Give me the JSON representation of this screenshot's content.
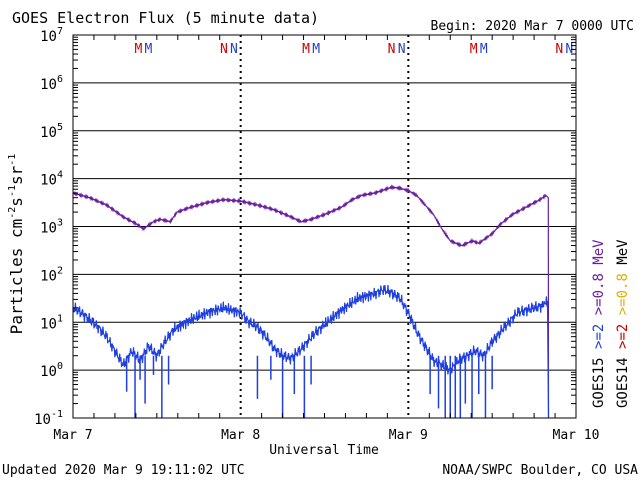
{
  "chart_data": {
    "type": "line",
    "title": "GOES Electron Flux (5 minute data)",
    "begin_label": "Begin: 2020 Mar 7 0000 UTC",
    "xlabel": "Universal Time",
    "ylabel_main": "Particles cm",
    "ylabel_exp1": "-2",
    "ylabel_mid1": "s",
    "ylabel_exp2": "-1",
    "ylabel_mid2": "sr",
    "ylabel_exp3": "-1",
    "x_ticks": [
      {
        "day": 0,
        "label": "Mar 7"
      },
      {
        "day": 1,
        "label": "Mar 8"
      },
      {
        "day": 2,
        "label": "Mar 9"
      },
      {
        "day": 3,
        "label": "Mar 10"
      }
    ],
    "xlim_days": [
      0,
      3
    ],
    "ylim_log10": [
      -1,
      7
    ],
    "y_ticks": [
      {
        "exp": -1,
        "base": "10",
        "sup": "-1"
      },
      {
        "exp": 0,
        "base": "10",
        "sup": "0"
      },
      {
        "exp": 1,
        "base": "10",
        "sup": "1"
      },
      {
        "exp": 2,
        "base": "10",
        "sup": "2"
      },
      {
        "exp": 3,
        "base": "10",
        "sup": "3"
      },
      {
        "exp": 4,
        "base": "10",
        "sup": "4"
      },
      {
        "exp": 5,
        "base": "10",
        "sup": "5"
      },
      {
        "exp": 6,
        "base": "10",
        "sup": "6"
      },
      {
        "exp": 7,
        "base": "10",
        "sup": "7"
      }
    ],
    "threshold": {
      "value": 1000,
      "style": "dashed"
    },
    "markers": [
      {
        "day": 0.39,
        "label": "M",
        "color": "#d00000"
      },
      {
        "day": 0.45,
        "label": "M",
        "color": "#2040d0"
      },
      {
        "day": 0.9,
        "label": "N",
        "color": "#d00000"
      },
      {
        "day": 0.96,
        "label": "N",
        "color": "#2040d0"
      },
      {
        "day": 1.39,
        "label": "M",
        "color": "#d00000"
      },
      {
        "day": 1.45,
        "label": "M",
        "color": "#2040d0"
      },
      {
        "day": 1.9,
        "label": "N",
        "color": "#d00000"
      },
      {
        "day": 1.96,
        "label": "N",
        "color": "#2040d0"
      },
      {
        "day": 2.39,
        "label": "M",
        "color": "#d00000"
      },
      {
        "day": 2.45,
        "label": "M",
        "color": "#2040d0"
      },
      {
        "day": 2.9,
        "label": "N",
        "color": "#d00000"
      },
      {
        "day": 2.96,
        "label": "N",
        "color": "#2040d0"
      }
    ],
    "series": [
      {
        "name": ">=0.8 MeV (GOES15)",
        "color": "#6a1fa0",
        "log10_points": [
          [
            0.0,
            3.7
          ],
          [
            0.1,
            3.6
          ],
          [
            0.2,
            3.45
          ],
          [
            0.3,
            3.2
          ],
          [
            0.38,
            3.05
          ],
          [
            0.42,
            2.95
          ],
          [
            0.48,
            3.1
          ],
          [
            0.52,
            3.15
          ],
          [
            0.58,
            3.1
          ],
          [
            0.62,
            3.3
          ],
          [
            0.7,
            3.4
          ],
          [
            0.8,
            3.5
          ],
          [
            0.9,
            3.56
          ],
          [
            1.0,
            3.53
          ],
          [
            1.1,
            3.45
          ],
          [
            1.2,
            3.35
          ],
          [
            1.3,
            3.2
          ],
          [
            1.36,
            3.1
          ],
          [
            1.42,
            3.15
          ],
          [
            1.5,
            3.25
          ],
          [
            1.6,
            3.4
          ],
          [
            1.66,
            3.55
          ],
          [
            1.72,
            3.65
          ],
          [
            1.8,
            3.7
          ],
          [
            1.9,
            3.82
          ],
          [
            1.95,
            3.8
          ],
          [
            2.0,
            3.75
          ],
          [
            2.05,
            3.65
          ],
          [
            2.1,
            3.45
          ],
          [
            2.15,
            3.25
          ],
          [
            2.2,
            2.95
          ],
          [
            2.25,
            2.7
          ],
          [
            2.32,
            2.6
          ],
          [
            2.38,
            2.7
          ],
          [
            2.42,
            2.65
          ],
          [
            2.5,
            2.85
          ],
          [
            2.55,
            3.05
          ],
          [
            2.62,
            3.25
          ],
          [
            2.7,
            3.4
          ],
          [
            2.78,
            3.55
          ],
          [
            2.82,
            3.65
          ],
          [
            2.835,
            3.6
          ],
          [
            2.836,
            -1.0
          ]
        ]
      },
      {
        "name": ">=2 MeV (GOES15)",
        "color": "#1f3fe0",
        "log10_points": [
          [
            0.0,
            1.3
          ],
          [
            0.05,
            1.2
          ],
          [
            0.1,
            1.05
          ],
          [
            0.15,
            0.9
          ],
          [
            0.2,
            0.7
          ],
          [
            0.25,
            0.4
          ],
          [
            0.3,
            0.1
          ],
          [
            0.35,
            0.4
          ],
          [
            0.4,
            0.2
          ],
          [
            0.45,
            0.5
          ],
          [
            0.5,
            0.3
          ],
          [
            0.55,
            0.6
          ],
          [
            0.6,
            0.85
          ],
          [
            0.7,
            1.05
          ],
          [
            0.8,
            1.2
          ],
          [
            0.9,
            1.3
          ],
          [
            1.0,
            1.2
          ],
          [
            1.05,
            1.0
          ],
          [
            1.1,
            0.9
          ],
          [
            1.15,
            0.7
          ],
          [
            1.2,
            0.45
          ],
          [
            1.25,
            0.3
          ],
          [
            1.3,
            0.25
          ],
          [
            1.35,
            0.4
          ],
          [
            1.4,
            0.6
          ],
          [
            1.45,
            0.8
          ],
          [
            1.5,
            0.95
          ],
          [
            1.6,
            1.25
          ],
          [
            1.7,
            1.5
          ],
          [
            1.8,
            1.6
          ],
          [
            1.85,
            1.68
          ],
          [
            1.9,
            1.62
          ],
          [
            1.95,
            1.5
          ],
          [
            2.0,
            1.2
          ],
          [
            2.05,
            0.8
          ],
          [
            2.1,
            0.5
          ],
          [
            2.15,
            0.2
          ],
          [
            2.2,
            0.1
          ],
          [
            2.25,
            0.0
          ],
          [
            2.3,
            0.2
          ],
          [
            2.35,
            0.3
          ],
          [
            2.4,
            0.4
          ],
          [
            2.45,
            0.3
          ],
          [
            2.5,
            0.6
          ],
          [
            2.55,
            0.8
          ],
          [
            2.6,
            1.0
          ],
          [
            2.65,
            1.2
          ],
          [
            2.7,
            1.25
          ],
          [
            2.75,
            1.3
          ],
          [
            2.8,
            1.35
          ],
          [
            2.83,
            1.45
          ],
          [
            2.836,
            -1.0
          ]
        ],
        "dropouts": [
          [
            0.32,
            -0.45
          ],
          [
            0.37,
            -1.0
          ],
          [
            0.4,
            -0.2
          ],
          [
            0.43,
            -0.7
          ],
          [
            0.48,
            -0.1
          ],
          [
            0.53,
            -1.0
          ],
          [
            0.57,
            -0.3
          ],
          [
            1.1,
            -0.6
          ],
          [
            1.18,
            -0.2
          ],
          [
            1.25,
            -1.0
          ],
          [
            1.32,
            -0.5
          ],
          [
            1.38,
            -1.0
          ],
          [
            1.42,
            -0.3
          ],
          [
            2.13,
            -0.5
          ],
          [
            2.18,
            -0.8
          ],
          [
            2.22,
            -1.0
          ],
          [
            2.25,
            -1.0
          ],
          [
            2.28,
            -1.0
          ],
          [
            2.31,
            -1.0
          ],
          [
            2.34,
            -0.7
          ],
          [
            2.38,
            -1.0
          ],
          [
            2.42,
            -0.5
          ],
          [
            2.46,
            -1.0
          ],
          [
            2.5,
            -0.4
          ]
        ]
      }
    ],
    "right_labels": [
      {
        "label": "GOES15",
        "color": "#000000"
      },
      {
        "label": ">=2",
        "color": "#1f3fe0"
      },
      {
        "label": ">=0.8",
        "color": "#6a1fa0"
      },
      {
        "label": "MeV",
        "color": "#6a1fa0"
      },
      {
        "label": "GOES14",
        "color": "#000000"
      },
      {
        "label": ">=2",
        "color": "#d00000"
      },
      {
        "label": ">=0.8",
        "color": "#e0b000"
      },
      {
        "label": "MeV",
        "color": "#000000"
      }
    ],
    "footer_left": "Updated 2020 Mar  9 19:11:02 UTC",
    "footer_right": "NOAA/SWPC Boulder, CO USA"
  }
}
